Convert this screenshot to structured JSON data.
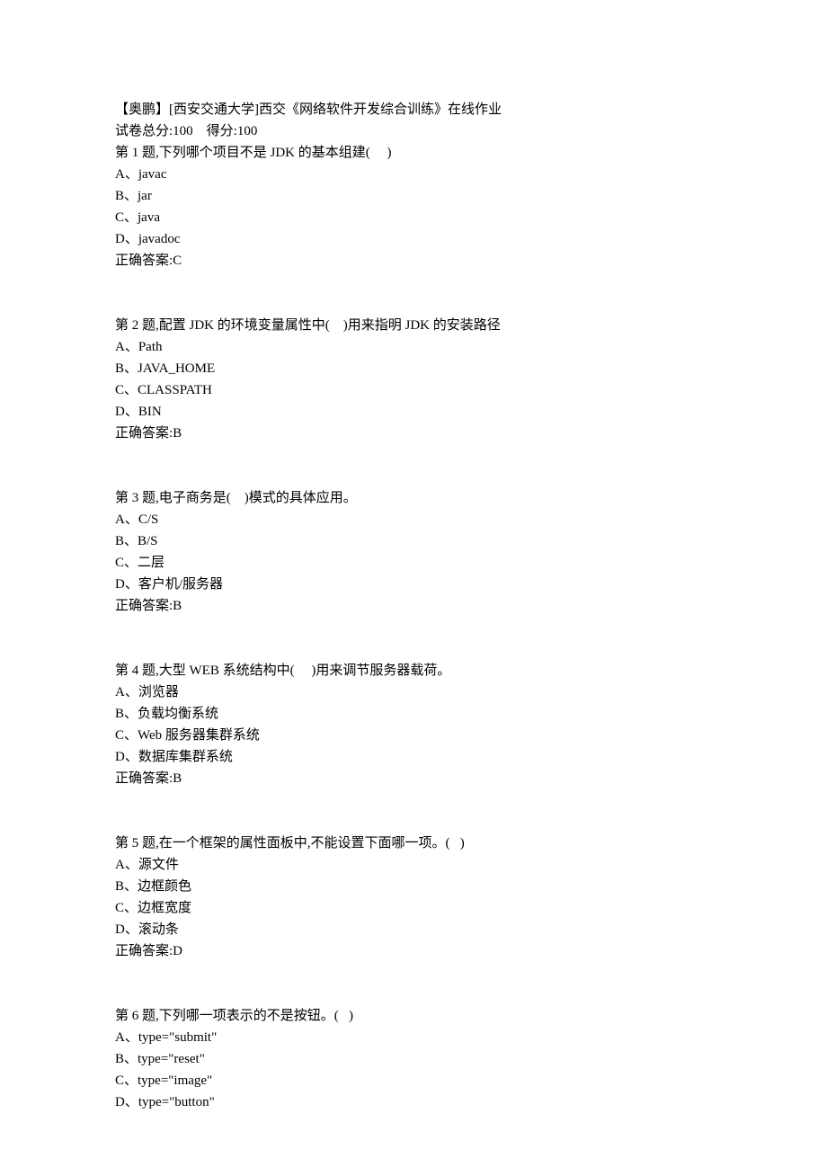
{
  "header": {
    "title": "【奥鹏】[西安交通大学]西交《网络软件开发综合训练》在线作业",
    "score_line": "试卷总分:100    得分:100"
  },
  "questions": [
    {
      "stem": "第 1 题,下列哪个项目不是 JDK 的基本组建(     )",
      "options": [
        "A、javac",
        "B、jar",
        "C、java",
        "D、javadoc"
      ],
      "answer": "正确答案:C"
    },
    {
      "stem": "第 2 题,配置 JDK 的环境变量属性中(    )用来指明 JDK 的安装路径",
      "options": [
        "A、Path",
        "B、JAVA_HOME",
        "C、CLASSPATH",
        "D、BIN"
      ],
      "answer": "正确答案:B"
    },
    {
      "stem": "第 3 题,电子商务是(    )模式的具体应用。",
      "options": [
        "A、C/S",
        "B、B/S",
        "C、二层",
        "D、客户机/服务器"
      ],
      "answer": "正确答案:B"
    },
    {
      "stem": "第 4 题,大型 WEB 系统结构中(     )用来调节服务器载荷。",
      "options": [
        "A、浏览器",
        "B、负载均衡系统",
        "C、Web 服务器集群系统",
        "D、数据库集群系统"
      ],
      "answer": "正确答案:B"
    },
    {
      "stem": "第 5 题,在一个框架的属性面板中,不能设置下面哪一项。(   )",
      "options": [
        "A、源文件",
        "B、边框颜色",
        "C、边框宽度",
        "D、滚动条"
      ],
      "answer": "正确答案:D"
    },
    {
      "stem": "第 6 题,下列哪一项表示的不是按钮。(   )",
      "options": [
        "A、type=\"submit\"",
        "B、type=\"reset\"",
        "C、type=\"image\"",
        "D、type=\"button\""
      ],
      "answer": ""
    }
  ]
}
